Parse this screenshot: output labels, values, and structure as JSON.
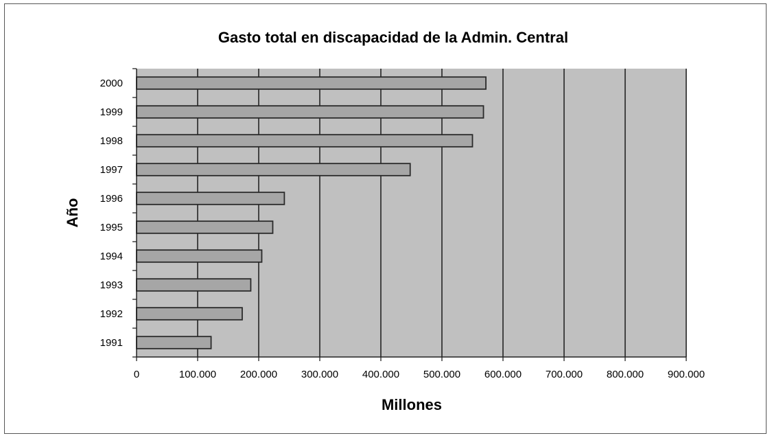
{
  "chart_data": {
    "type": "bar",
    "orientation": "horizontal",
    "title": "Gasto total en discapacidad de la Admin. Central",
    "xlabel": "Millones",
    "ylabel": "Año",
    "categories": [
      "1991",
      "1992",
      "1993",
      "1994",
      "1995",
      "1996",
      "1997",
      "1998",
      "1999",
      "2000"
    ],
    "values": [
      122000,
      173000,
      187000,
      205000,
      223000,
      242000,
      448000,
      550000,
      568000,
      572000
    ],
    "xlim": [
      0,
      900000
    ],
    "xticks": [
      0,
      100000,
      200000,
      300000,
      400000,
      500000,
      600000,
      700000,
      800000,
      900000
    ],
    "xtick_labels": [
      "0",
      "100.000",
      "200.000",
      "300.000",
      "400.000",
      "500.000",
      "600.000",
      "700.000",
      "800.000",
      "900.000"
    ],
    "grid": "vertical",
    "legend": "none",
    "colors": {
      "plot_background": "#c0c0c0",
      "bar_fill": "#a6a6a6",
      "bar_stroke": "#2a2a2a",
      "gridline": "#222222"
    }
  }
}
